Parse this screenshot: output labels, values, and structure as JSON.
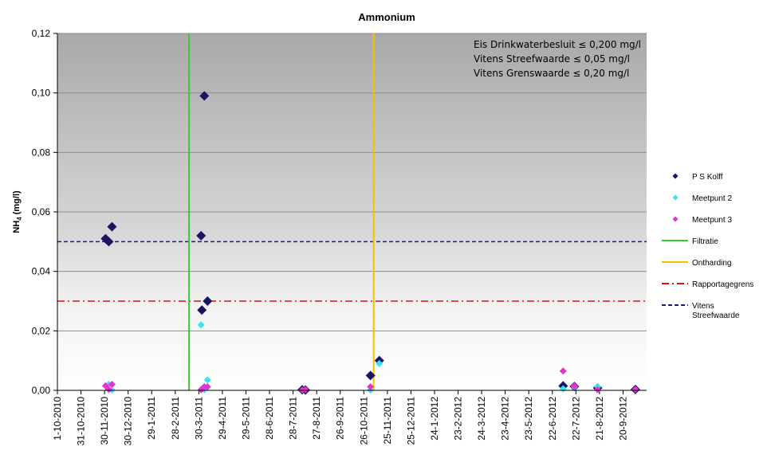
{
  "chart_data": {
    "type": "scatter",
    "title": "Ammonium",
    "ylabel": "NH4 (mg/l)",
    "ylabel_main": "NH",
    "ylabel_sub": "4",
    "ylabel_unit": " (mg/l)",
    "ylim": [
      0,
      0.12
    ],
    "y_ticks": [
      "0,00",
      "0,02",
      "0,04",
      "0,06",
      "0,08",
      "0,10",
      "0,12"
    ],
    "x_ticks": [
      "1-10-2010",
      "31-10-2010",
      "30-11-2010",
      "30-12-2010",
      "29-1-2011",
      "28-2-2011",
      "30-3-2011",
      "29-4-2011",
      "29-5-2011",
      "28-6-2011",
      "28-7-2011",
      "27-8-2011",
      "26-9-2011",
      "26-10-2011",
      "25-11-2011",
      "25-12-2011",
      "24-1-2012",
      "23-2-2012",
      "24-3-2012",
      "23-4-2012",
      "23-5-2012",
      "22-6-2012",
      "22-7-2012",
      "21-8-2012",
      "20-9-2012"
    ],
    "xlim": [
      "2010-10-01",
      "2012-10-04"
    ],
    "grid": true,
    "legend_position": "right",
    "annotations": [
      "Eis Drinkwaterbesluit ≤ 0,200  mg/l",
      "Vitens  Streefwaarde ≤ 0,05 mg/l",
      "Vitens Grenswaarde ≤ 0,20  mg/l"
    ],
    "series": [
      {
        "name": "P S Kolff",
        "color": "#1b1464",
        "marker": "diamond",
        "points": [
          {
            "x": "2010-11-30",
            "y": 0.051
          },
          {
            "x": "2010-12-04",
            "y": 0.05
          },
          {
            "x": "2010-12-08",
            "y": 0.055
          },
          {
            "x": "2011-03-29",
            "y": 0.052
          },
          {
            "x": "2011-03-30",
            "y": 0.027
          },
          {
            "x": "2011-04-02",
            "y": 0.099
          },
          {
            "x": "2011-04-06",
            "y": 0.03
          },
          {
            "x": "2011-08-02",
            "y": 0.0002
          },
          {
            "x": "2011-08-06",
            "y": 0.0001
          },
          {
            "x": "2011-10-26",
            "y": 0.005
          },
          {
            "x": "2011-11-06",
            "y": 0.01
          },
          {
            "x": "2012-06-22",
            "y": 0.0015
          },
          {
            "x": "2012-07-06",
            "y": 0.0013
          },
          {
            "x": "2012-08-04",
            "y": 0.0008
          },
          {
            "x": "2012-09-20",
            "y": 0.0003
          }
        ]
      },
      {
        "name": "Meetpunt 2",
        "color": "#33e6f2",
        "marker": "diamond",
        "points": [
          {
            "x": "2010-12-04",
            "y": 0.002
          },
          {
            "x": "2010-12-08",
            "y": 0.0001
          },
          {
            "x": "2011-03-29",
            "y": 0.022
          },
          {
            "x": "2011-03-30",
            "y": 0.0005
          },
          {
            "x": "2011-04-02",
            "y": 0.0002
          },
          {
            "x": "2011-04-06",
            "y": 0.0035
          },
          {
            "x": "2011-10-26",
            "y": 0.0001
          },
          {
            "x": "2011-11-06",
            "y": 0.009
          },
          {
            "x": "2012-06-22",
            "y": 0.0005
          },
          {
            "x": "2012-07-06",
            "y": 0.0012
          },
          {
            "x": "2012-08-04",
            "y": 0.0012
          }
        ]
      },
      {
        "name": "Meetpunt 3",
        "color": "#e633cc",
        "marker": "diamond",
        "points": [
          {
            "x": "2010-11-30",
            "y": 0.0015
          },
          {
            "x": "2010-12-04",
            "y": 0.0003
          },
          {
            "x": "2010-12-08",
            "y": 0.002
          },
          {
            "x": "2011-03-29",
            "y": 0.0002
          },
          {
            "x": "2011-04-02",
            "y": 0.0012
          },
          {
            "x": "2011-04-06",
            "y": 0.0012
          },
          {
            "x": "2011-08-02",
            "y": 0.0001
          },
          {
            "x": "2011-08-06",
            "y": 0.0002
          },
          {
            "x": "2011-10-26",
            "y": 0.0012
          },
          {
            "x": "2012-06-22",
            "y": 0.0065
          },
          {
            "x": "2012-07-06",
            "y": 0.0015
          },
          {
            "x": "2012-08-04",
            "y": 0.0002
          },
          {
            "x": "2012-09-20",
            "y": 0.0003
          }
        ]
      }
    ],
    "vertical_lines": [
      {
        "name": "Filtratie",
        "color": "#33cc33",
        "x": "2011-03-14"
      },
      {
        "name": "Ontharding",
        "color": "#f2c200",
        "x": "2011-10-30"
      }
    ],
    "horizontal_lines": [
      {
        "name": "Rapportagegrens",
        "color": "#dd1111",
        "style": "dashdot",
        "y": 0.03
      },
      {
        "name": "Vitens Streefwaarde",
        "name_lines": [
          "Vitens",
          "Streefwaarde"
        ],
        "color": "#1a1a99",
        "style": "dash",
        "y": 0.05
      }
    ],
    "background": {
      "bands": [
        [
          0,
          0.03,
          "#ffffff",
          "#f4f4f4"
        ],
        [
          0.03,
          0.05,
          "#f0f0f0",
          "#dcdcdc"
        ],
        [
          0.05,
          0.12,
          "#dadada",
          "#a8a8a8"
        ]
      ]
    }
  }
}
